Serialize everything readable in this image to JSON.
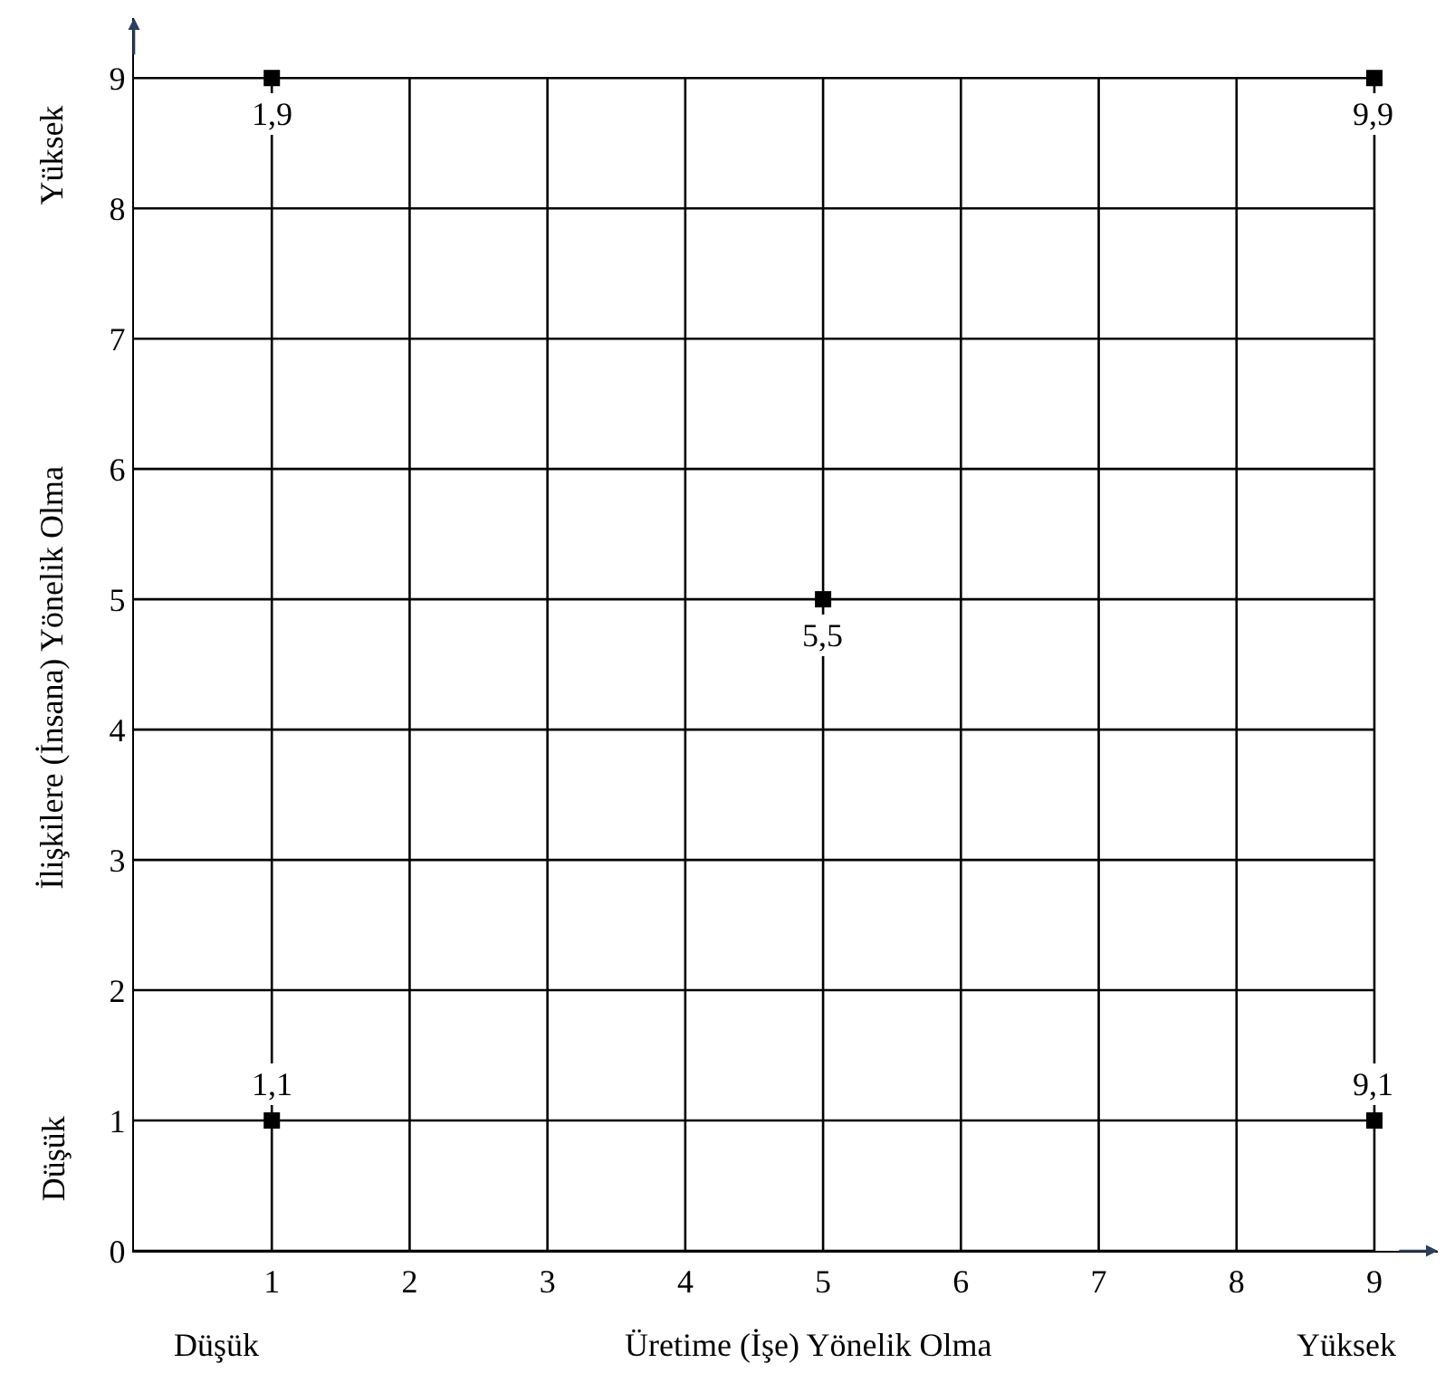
{
  "chart_data": {
    "type": "scatter",
    "xlabel": "Üretime (İşe) Yönelik Olma",
    "ylabel": "İlişkilere (İnsana) Yönelik Olma",
    "x": [
      1,
      9,
      5,
      1,
      9
    ],
    "values": [
      9,
      9,
      5,
      1,
      1
    ],
    "color": "#000000",
    "marker": "square",
    "xlim": [
      0,
      9.46
    ],
    "ylim": [
      0,
      9.46
    ],
    "xticks": [
      1,
      2,
      3,
      4,
      5,
      6,
      7,
      8,
      9
    ],
    "yticks": [
      0,
      1,
      2,
      3,
      4,
      5,
      6,
      7,
      8,
      9
    ],
    "grid": true,
    "legend": false,
    "annotations": [
      "Düşük",
      "Yüksek",
      "Düşük",
      "Yüksek",
      {
        "text": "1,9",
        "x": 1,
        "y": 9
      },
      {
        "text": "9,9",
        "x": 9,
        "y": 9
      },
      {
        "text": "5,5",
        "x": 5,
        "y": 5
      },
      {
        "text": "1,1",
        "x": 1,
        "y": 1
      },
      {
        "text": "9,1",
        "x": 9,
        "y": 1
      }
    ]
  }
}
